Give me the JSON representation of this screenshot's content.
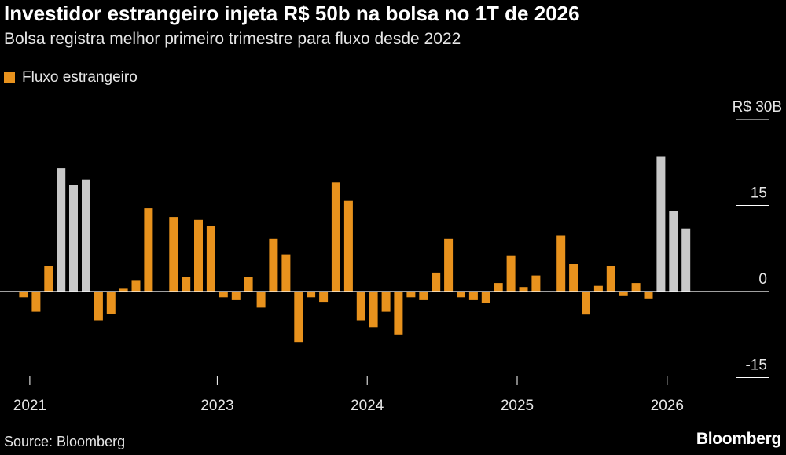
{
  "header": {
    "title": "Investidor estrangeiro injeta R$ 50b na bolsa no 1T de 2026",
    "subtitle": "Bolsa registra melhor primeiro trimestre para fluxo desde 2022"
  },
  "legend": {
    "label": "Fluxo estrangeiro",
    "color": "#e8921d"
  },
  "footer": {
    "source": "Source: Bloomberg",
    "brand": "Bloomberg"
  },
  "colors": {
    "bar": "#e8921d",
    "highlight": "#c8c8c8",
    "background": "#000000",
    "axis": "#ffffff"
  },
  "chart_data": {
    "type": "bar",
    "ylabel": "",
    "ylim": [
      -20,
      30
    ],
    "y_ticks": [
      {
        "value": 30,
        "label": "R$ 30B"
      },
      {
        "value": 15,
        "label": "15"
      },
      {
        "value": 0,
        "label": "0"
      },
      {
        "value": -15,
        "label": "-15"
      }
    ],
    "x_ticks": [
      {
        "index": 1,
        "label": "2021"
      },
      {
        "index": 16,
        "label": "2023"
      },
      {
        "index": 28,
        "label": "2024"
      },
      {
        "index": 40,
        "label": "2025"
      },
      {
        "index": 52,
        "label": "2026"
      }
    ],
    "series": [
      {
        "name": "Fluxo estrangeiro",
        "values": [
          -1,
          -3.5,
          4.5,
          21.5,
          18.5,
          19.5,
          -5,
          -3.9,
          0.5,
          2,
          14.5,
          0,
          13,
          2.5,
          12.5,
          11.5,
          -1,
          -1.5,
          2.5,
          -2.8,
          9.2,
          6.5,
          -8.8,
          -1,
          -1.8,
          19,
          15.8,
          -5,
          -6.2,
          -3.5,
          -7.5,
          -1,
          -1.5,
          3.3,
          9.2,
          -1,
          -1.5,
          -2,
          1.5,
          6.2,
          0.8,
          2.8,
          0,
          9.8,
          4.8,
          -4,
          1,
          4.5,
          -0.8,
          1.5,
          -1.2,
          23.5,
          14,
          11
        ],
        "highlight": [
          3,
          4,
          5,
          51,
          52,
          53
        ]
      }
    ]
  }
}
